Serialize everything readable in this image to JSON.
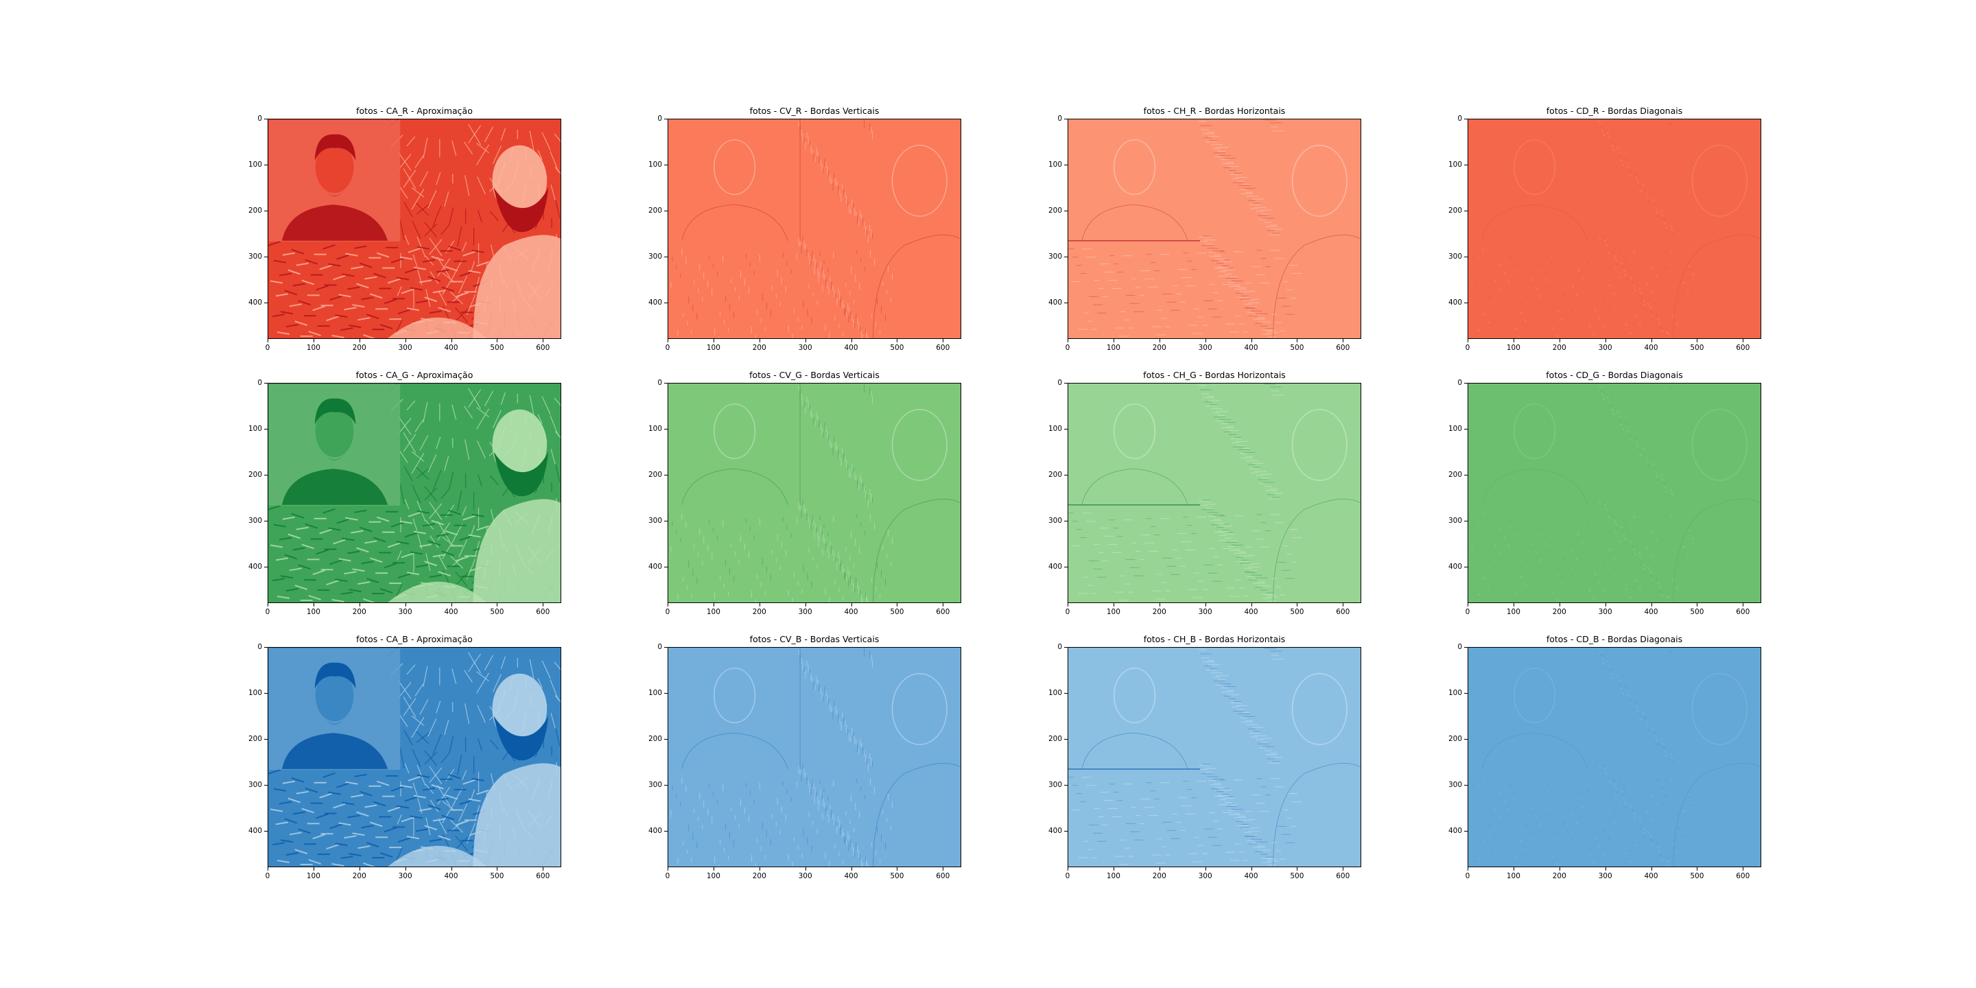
{
  "figure": {
    "panels": [
      {
        "title": "fotos - CA_R - Aproximação",
        "kind": "approx",
        "channel": "R"
      },
      {
        "title": "fotos - CV_R - Bordas Verticais",
        "kind": "vertical",
        "channel": "R"
      },
      {
        "title": "fotos - CH_R - Bordas Horizontais",
        "kind": "horizontal",
        "channel": "R"
      },
      {
        "title": "fotos - CD_R - Bordas Diagonais",
        "kind": "diagonal",
        "channel": "R"
      },
      {
        "title": "fotos - CA_G - Aproximação",
        "kind": "approx",
        "channel": "G"
      },
      {
        "title": "fotos - CV_G - Bordas Verticais",
        "kind": "vertical",
        "channel": "G"
      },
      {
        "title": "fotos - CH_G - Bordas Horizontais",
        "kind": "horizontal",
        "channel": "G"
      },
      {
        "title": "fotos - CD_G - Bordas Diagonais",
        "kind": "diagonal",
        "channel": "G"
      },
      {
        "title": "fotos - CA_B - Aproximação",
        "kind": "approx",
        "channel": "B"
      },
      {
        "title": "fotos - CV_B - Bordas Verticais",
        "kind": "vertical",
        "channel": "B"
      },
      {
        "title": "fotos - CH_B - Bordas Horizontais",
        "kind": "horizontal",
        "channel": "B"
      },
      {
        "title": "fotos - CD_B - Bordas Diagonais",
        "kind": "diagonal",
        "channel": "B"
      }
    ],
    "y_ticks": [
      "0",
      "100",
      "200",
      "300",
      "400"
    ],
    "x_ticks": [
      "0",
      "100",
      "200",
      "300",
      "400",
      "500",
      "600"
    ],
    "colors": {
      "R": {
        "dark": "#b11218",
        "mid": "#e8432f",
        "light": "#fcb59c",
        "edge": "#fb7a5a",
        "edge_h": "#fc9474",
        "diag": "#f5674a"
      },
      "G": {
        "dark": "#0e7a35",
        "mid": "#3fa458",
        "light": "#b6e2af",
        "edge": "#7ec87a",
        "edge_h": "#98d594",
        "diag": "#6dbf70"
      },
      "B": {
        "dark": "#0b5aa8",
        "mid": "#3a87c4",
        "light": "#b5d4ea",
        "edge": "#74afdc",
        "edge_h": "#8cc0e3",
        "diag": "#63a8d6"
      }
    }
  }
}
